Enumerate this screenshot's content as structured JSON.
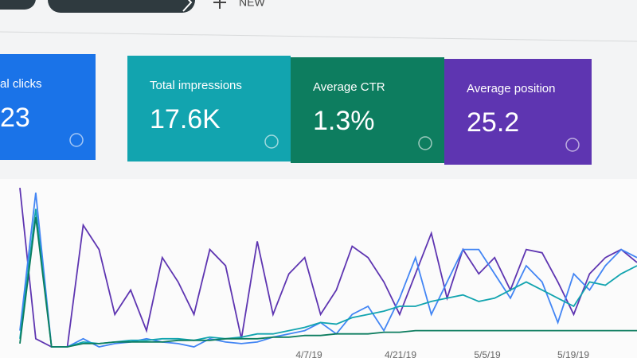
{
  "toolbar": {
    "new_button": "NEW"
  },
  "cards": [
    {
      "label": "al clicks",
      "value": "23",
      "color": "#1a73e8"
    },
    {
      "label": "Total impressions",
      "value": "17.6K",
      "color": "#12a4af"
    },
    {
      "label": "Average CTR",
      "value": "1.3%",
      "color": "#0d7d5f"
    },
    {
      "label": "Average position",
      "value": "25.2",
      "color": "#5e35b1"
    }
  ],
  "chart": {
    "x_labels": [
      "4/7/19",
      "4/21/19",
      "5/5/19",
      "5/19/19"
    ],
    "series": [
      {
        "color": "#5e35b1",
        "values": [
          98,
          5,
          0,
          0,
          75,
          60,
          20,
          35,
          10,
          55,
          40,
          20,
          60,
          50,
          5,
          65,
          20,
          45,
          55,
          20,
          35,
          62,
          55,
          40,
          20,
          45,
          70,
          30,
          60,
          45,
          55,
          35,
          60,
          58,
          40,
          20,
          45,
          55,
          60,
          52
        ]
      },
      {
        "color": "#4285f4",
        "values": [
          10,
          95,
          0,
          0,
          5,
          0,
          2,
          3,
          5,
          3,
          2,
          0,
          5,
          3,
          2,
          3,
          6,
          8,
          10,
          15,
          8,
          20,
          25,
          10,
          30,
          55,
          20,
          40,
          60,
          60,
          45,
          30,
          50,
          40,
          15,
          45,
          35,
          50,
          60,
          55
        ]
      },
      {
        "color": "#12a4af",
        "values": [
          5,
          85,
          0,
          0,
          3,
          2,
          3,
          4,
          4,
          5,
          5,
          4,
          6,
          5,
          6,
          8,
          8,
          10,
          12,
          15,
          14,
          18,
          20,
          22,
          25,
          25,
          28,
          30,
          32,
          28,
          30,
          35,
          40,
          35,
          30,
          25,
          40,
          38,
          45,
          50
        ]
      },
      {
        "color": "#0d7d5f",
        "values": [
          2,
          80,
          0,
          0,
          2,
          2,
          3,
          3,
          3,
          3,
          4,
          4,
          4,
          5,
          5,
          5,
          6,
          6,
          7,
          7,
          8,
          8,
          8,
          9,
          9,
          10,
          10,
          10,
          10,
          10,
          10,
          10,
          10,
          10,
          10,
          10,
          10,
          10,
          10,
          10
        ]
      }
    ]
  }
}
